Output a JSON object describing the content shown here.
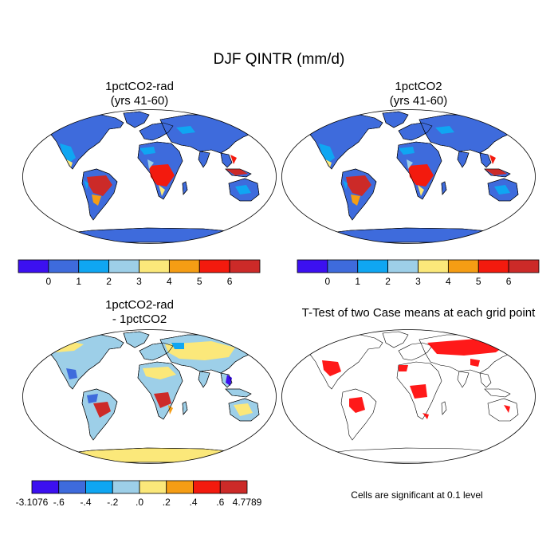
{
  "figure": {
    "title": "DJF QINTR (mm/d)",
    "panels": [
      {
        "id": "p1",
        "title_line1": "1pctCO2-rad",
        "title_line2": "(yrs 41-60)"
      },
      {
        "id": "p2",
        "title_line1": "1pctCO2",
        "title_line2": "(yrs 41-60)"
      },
      {
        "id": "p3",
        "title_line1": "1pctCO2-rad",
        "title_line2": "- 1pctCO2"
      },
      {
        "id": "p4",
        "title_line1": "T-Test of two Case means at each grid point",
        "title_line2": ""
      }
    ],
    "significance_note": "Cells are significant at 0.1 level"
  },
  "colorbars": {
    "absolute": {
      "colors": [
        "#3c10f0",
        "#3e6bdc",
        "#0fa6f2",
        "#9dcfe8",
        "#fbe87a",
        "#f59d14",
        "#f31a0e",
        "#cc2a28"
      ],
      "labels": [
        "0",
        "1",
        "2",
        "3",
        "4",
        "5",
        "6"
      ]
    },
    "difference": {
      "colors": [
        "#3c10f0",
        "#3e6bdc",
        "#0fa6f2",
        "#9dcfe8",
        "#fbe87a",
        "#f59d14",
        "#f31a0e",
        "#cc2a28"
      ],
      "labels": [
        "-3.1076",
        "-.6",
        "-.4",
        "-.2",
        ".0",
        ".2",
        ".4",
        ".6",
        "4.7789"
      ]
    }
  },
  "colors": {
    "ocean": "#ffffff",
    "land_abs_bg": "#3e6bdc",
    "land_diff_bg": "#9dcfe8",
    "significant": "#ff0000",
    "coast": "#000000"
  }
}
